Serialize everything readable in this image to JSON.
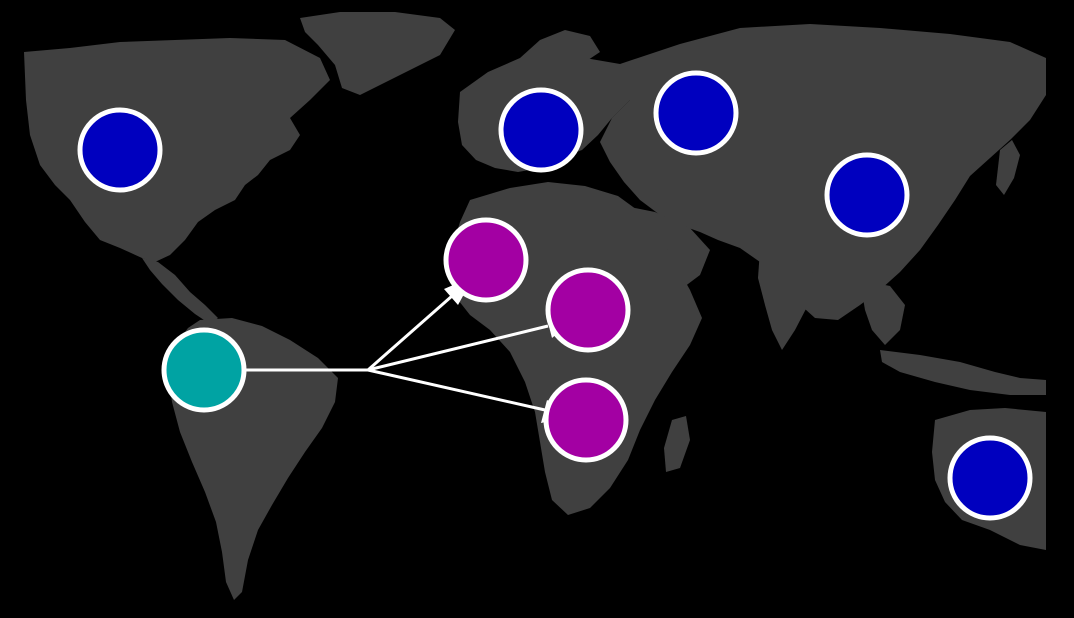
{
  "colors": {
    "background": "#000000",
    "land": "#404040",
    "outline": "#ffffff",
    "blue_node": "#0000bf",
    "teal_node": "#00a3a3",
    "magenta_node": "#a300a3"
  },
  "nodes": [
    {
      "id": "north-america",
      "color_key": "blue_node"
    },
    {
      "id": "western-europe",
      "color_key": "blue_node"
    },
    {
      "id": "russia",
      "color_key": "blue_node"
    },
    {
      "id": "china",
      "color_key": "blue_node"
    },
    {
      "id": "australia",
      "color_key": "blue_node"
    },
    {
      "id": "south-america",
      "color_key": "teal_node"
    },
    {
      "id": "west-africa",
      "color_key": "magenta_node"
    },
    {
      "id": "central-africa",
      "color_key": "magenta_node"
    },
    {
      "id": "southern-africa",
      "color_key": "magenta_node"
    }
  ],
  "links": [
    {
      "from": "south-america",
      "to": "west-africa"
    },
    {
      "from": "south-america",
      "to": "central-africa"
    },
    {
      "from": "south-america",
      "to": "southern-africa"
    }
  ]
}
